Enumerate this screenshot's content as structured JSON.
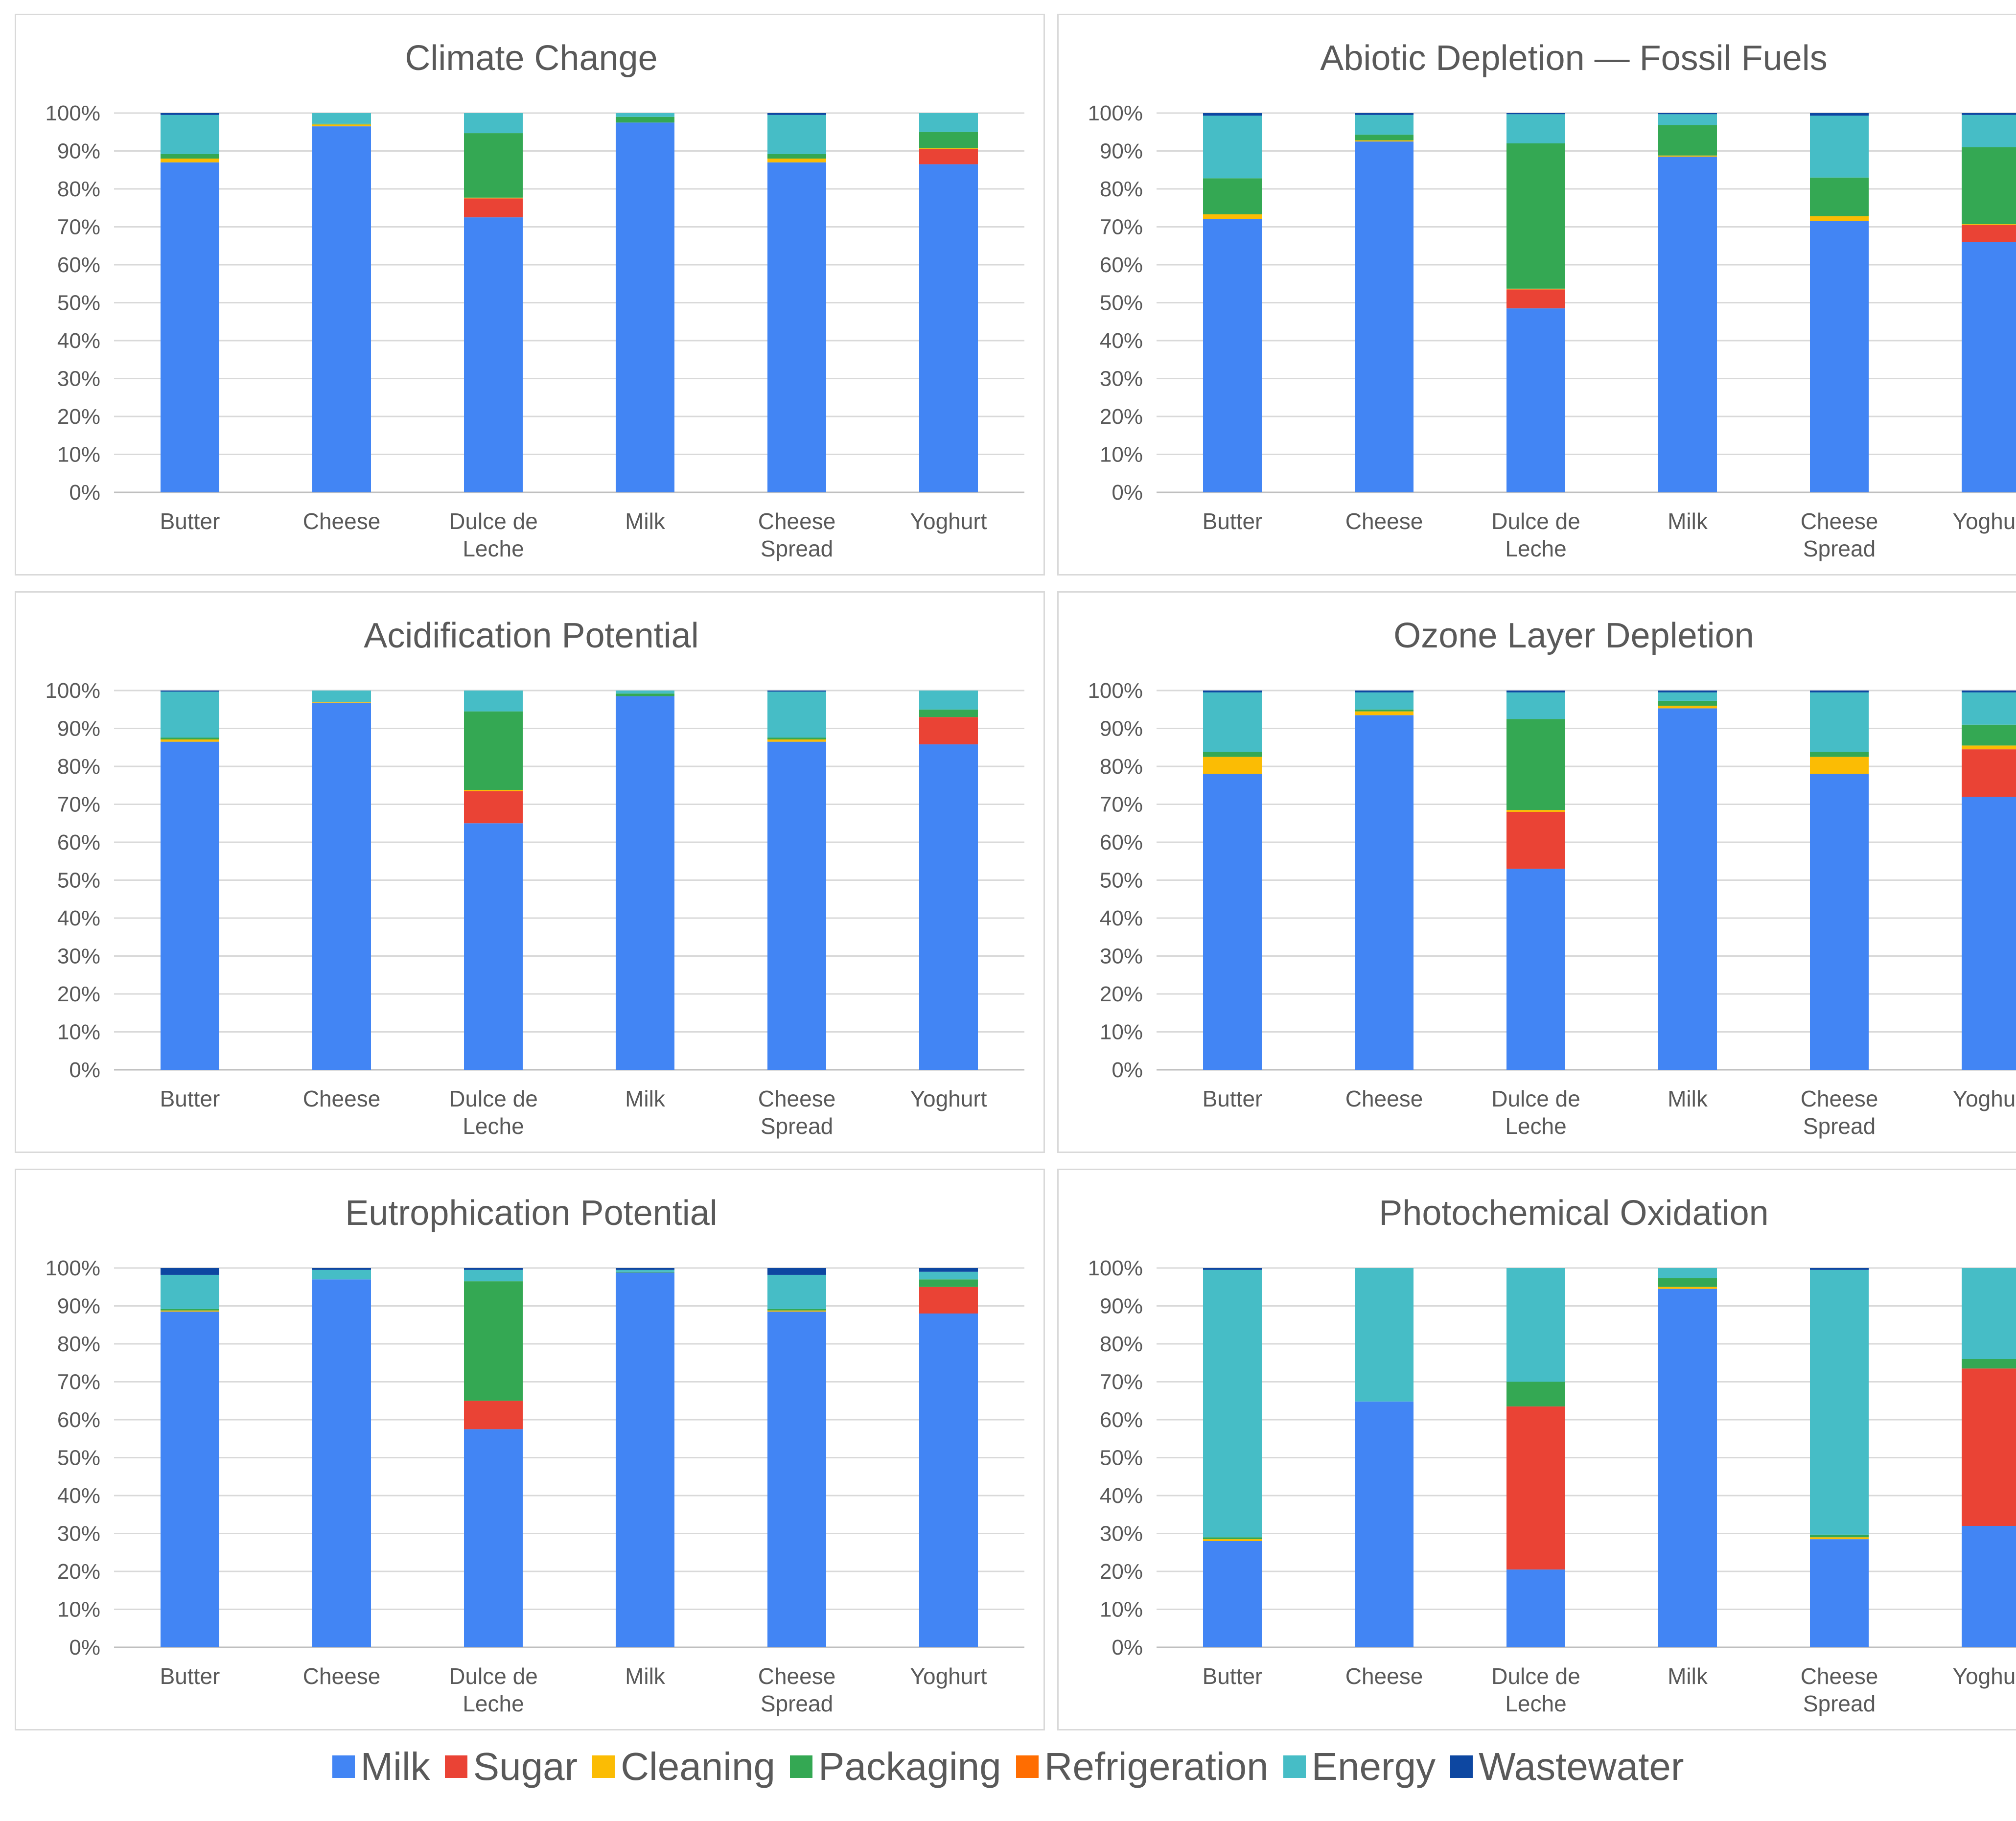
{
  "legend": {
    "items": [
      {
        "key": "milk",
        "label": "Milk",
        "color": "#4285F4"
      },
      {
        "key": "sugar",
        "label": "Sugar",
        "color": "#EA4335"
      },
      {
        "key": "cleaning",
        "label": "Cleaning",
        "color": "#FBBC04"
      },
      {
        "key": "packaging",
        "label": "Packaging",
        "color": "#34A853"
      },
      {
        "key": "refrigeration",
        "label": "Refrigeration",
        "color": "#FF6D01"
      },
      {
        "key": "energy",
        "label": "Energy",
        "color": "#46BDC6"
      },
      {
        "key": "wastewater",
        "label": "Wastewater",
        "color": "#0D47A1"
      }
    ]
  },
  "chart_data": [
    {
      "type": "bar",
      "stacked": true,
      "title": "Climate Change",
      "categories": [
        "Butter",
        "Cheese",
        "Dulce de\nLeche",
        "Milk",
        "Cheese\nSpread",
        "Yoghurt"
      ],
      "ylim": [
        0,
        100
      ],
      "ytick_labels": [
        "0%",
        "10%",
        "20%",
        "30%",
        "40%",
        "50%",
        "60%",
        "70%",
        "80%",
        "90%",
        "100%"
      ],
      "grid": true,
      "series": [
        {
          "name": "Milk",
          "values": [
            87,
            96.5,
            72.5,
            97.5,
            87,
            86.5
          ]
        },
        {
          "name": "Sugar",
          "values": [
            0,
            0,
            5,
            0,
            0,
            4
          ]
        },
        {
          "name": "Cleaning",
          "values": [
            1,
            0.5,
            0.2,
            0,
            1,
            0.2
          ]
        },
        {
          "name": "Packaging",
          "values": [
            1.2,
            0.2,
            17,
            1.5,
            1.2,
            4.3
          ]
        },
        {
          "name": "Refrigeration",
          "values": [
            0,
            0,
            0,
            0,
            0,
            0
          ]
        },
        {
          "name": "Energy",
          "values": [
            10.3,
            2.8,
            5.3,
            1,
            10.3,
            5
          ]
        },
        {
          "name": "Wastewater",
          "values": [
            0.5,
            0,
            0,
            0,
            0.5,
            0
          ]
        }
      ]
    },
    {
      "type": "bar",
      "stacked": true,
      "title": "Abiotic Depletion — Fossil Fuels",
      "categories": [
        "Butter",
        "Cheese",
        "Dulce de\nLeche",
        "Milk",
        "Cheese\nSpread",
        "Yoghurt"
      ],
      "ylim": [
        0,
        100
      ],
      "ytick_labels": [
        "0%",
        "10%",
        "20%",
        "30%",
        "40%",
        "50%",
        "60%",
        "70%",
        "80%",
        "90%",
        "100%"
      ],
      "grid": true,
      "series": [
        {
          "name": "Milk",
          "values": [
            72,
            92.5,
            48.5,
            88.5,
            71.5,
            66
          ]
        },
        {
          "name": "Sugar",
          "values": [
            0,
            0,
            5,
            0,
            0,
            4.5
          ]
        },
        {
          "name": "Cleaning",
          "values": [
            1.3,
            0.3,
            0.2,
            0.3,
            1.3,
            0.2
          ]
        },
        {
          "name": "Packaging",
          "values": [
            9.5,
            1.5,
            38.3,
            8,
            10.2,
            20.3
          ]
        },
        {
          "name": "Refrigeration",
          "values": [
            0,
            0,
            0,
            0,
            0,
            0
          ]
        },
        {
          "name": "Energy",
          "values": [
            16.5,
            5.2,
            7.7,
            2.9,
            16.3,
            8.5
          ]
        },
        {
          "name": "Wastewater",
          "values": [
            0.7,
            0.5,
            0.3,
            0.3,
            0.7,
            0.5
          ]
        }
      ]
    },
    {
      "type": "bar",
      "stacked": true,
      "title": "Acidification Potential",
      "categories": [
        "Butter",
        "Cheese",
        "Dulce de\nLeche",
        "Milk",
        "Cheese\nSpread",
        "Yoghurt"
      ],
      "ylim": [
        0,
        100
      ],
      "ytick_labels": [
        "0%",
        "10%",
        "20%",
        "30%",
        "40%",
        "50%",
        "60%",
        "70%",
        "80%",
        "90%",
        "100%"
      ],
      "grid": true,
      "series": [
        {
          "name": "Milk",
          "values": [
            86.5,
            96.8,
            65,
            98.5,
            86.5,
            85.8
          ]
        },
        {
          "name": "Sugar",
          "values": [
            0,
            0,
            8.5,
            0,
            0,
            7.2
          ]
        },
        {
          "name": "Cleaning",
          "values": [
            0.6,
            0.2,
            0.3,
            0,
            0.6,
            0
          ]
        },
        {
          "name": "Packaging",
          "values": [
            0.5,
            0,
            20.7,
            0.7,
            0.5,
            2
          ]
        },
        {
          "name": "Refrigeration",
          "values": [
            0,
            0,
            0,
            0,
            0,
            0
          ]
        },
        {
          "name": "Energy",
          "values": [
            12.1,
            3,
            5.5,
            0.8,
            12.1,
            5
          ]
        },
        {
          "name": "Wastewater",
          "values": [
            0.3,
            0,
            0,
            0,
            0.3,
            0
          ]
        }
      ]
    },
    {
      "type": "bar",
      "stacked": true,
      "title": "Ozone Layer Depletion",
      "categories": [
        "Butter",
        "Cheese",
        "Dulce de\nLeche",
        "Milk",
        "Cheese\nSpread",
        "Yoghurt"
      ],
      "ylim": [
        0,
        100
      ],
      "ytick_labels": [
        "0%",
        "10%",
        "20%",
        "30%",
        "40%",
        "50%",
        "60%",
        "70%",
        "80%",
        "90%",
        "100%"
      ],
      "grid": true,
      "series": [
        {
          "name": "Milk",
          "values": [
            78,
            93.5,
            53,
            95.3,
            78,
            72
          ]
        },
        {
          "name": "Sugar",
          "values": [
            0,
            0,
            15,
            0,
            0,
            12.5
          ]
        },
        {
          "name": "Cleaning",
          "values": [
            4.5,
            1,
            0.5,
            0.7,
            4.5,
            1
          ]
        },
        {
          "name": "Packaging",
          "values": [
            1.3,
            0.5,
            24,
            1.3,
            1.3,
            5.5
          ]
        },
        {
          "name": "Refrigeration",
          "values": [
            0,
            0,
            0,
            0,
            0,
            0
          ]
        },
        {
          "name": "Energy",
          "values": [
            15.7,
            4.5,
            7,
            2.2,
            15.7,
            8.5
          ]
        },
        {
          "name": "Wastewater",
          "values": [
            0.5,
            0.5,
            0.5,
            0.5,
            0.5,
            0.5
          ]
        }
      ]
    },
    {
      "type": "bar",
      "stacked": true,
      "title": "Eutrophication Potential",
      "categories": [
        "Butter",
        "Cheese",
        "Dulce de\nLeche",
        "Milk",
        "Cheese\nSpread",
        "Yoghurt"
      ],
      "ylim": [
        0,
        100
      ],
      "ytick_labels": [
        "0%",
        "10%",
        "20%",
        "30%",
        "40%",
        "50%",
        "60%",
        "70%",
        "80%",
        "90%",
        "100%"
      ],
      "grid": true,
      "series": [
        {
          "name": "Milk",
          "values": [
            88.5,
            97,
            57.5,
            98.8,
            88.5,
            88
          ]
        },
        {
          "name": "Sugar",
          "values": [
            0,
            0,
            7.5,
            0,
            0,
            7
          ]
        },
        {
          "name": "Cleaning",
          "values": [
            0.3,
            0,
            0,
            0,
            0.3,
            0
          ]
        },
        {
          "name": "Packaging",
          "values": [
            0.4,
            0,
            31.5,
            0.2,
            0.4,
            2
          ]
        },
        {
          "name": "Refrigeration",
          "values": [
            0,
            0,
            0,
            0,
            0,
            0
          ]
        },
        {
          "name": "Energy",
          "values": [
            9,
            2.5,
            3,
            0.5,
            9,
            2
          ]
        },
        {
          "name": "Wastewater",
          "values": [
            1.8,
            0.5,
            0.5,
            0.5,
            1.8,
            1
          ]
        }
      ]
    },
    {
      "type": "bar",
      "stacked": true,
      "title": "Photochemical Oxidation",
      "categories": [
        "Butter",
        "Cheese",
        "Dulce de\nLeche",
        "Milk",
        "Cheese\nSpread",
        "Yoghurt"
      ],
      "ylim": [
        0,
        100
      ],
      "ytick_labels": [
        "0%",
        "10%",
        "20%",
        "30%",
        "40%",
        "50%",
        "60%",
        "70%",
        "80%",
        "90%",
        "100%"
      ],
      "grid": true,
      "series": [
        {
          "name": "Milk",
          "values": [
            28,
            64.8,
            20.5,
            94.5,
            28.5,
            32
          ]
        },
        {
          "name": "Sugar",
          "values": [
            0,
            0,
            43,
            0,
            0,
            41.5
          ]
        },
        {
          "name": "Cleaning",
          "values": [
            0.5,
            0,
            0,
            0.5,
            0.5,
            0
          ]
        },
        {
          "name": "Packaging",
          "values": [
            0.5,
            0,
            6.5,
            2.3,
            0.7,
            2.5
          ]
        },
        {
          "name": "Refrigeration",
          "values": [
            0,
            0,
            0,
            0,
            0,
            0
          ]
        },
        {
          "name": "Energy",
          "values": [
            70.5,
            35.2,
            30,
            2.7,
            69.8,
            24
          ]
        },
        {
          "name": "Wastewater",
          "values": [
            0.5,
            0,
            0,
            0,
            0.5,
            0
          ]
        }
      ]
    }
  ]
}
